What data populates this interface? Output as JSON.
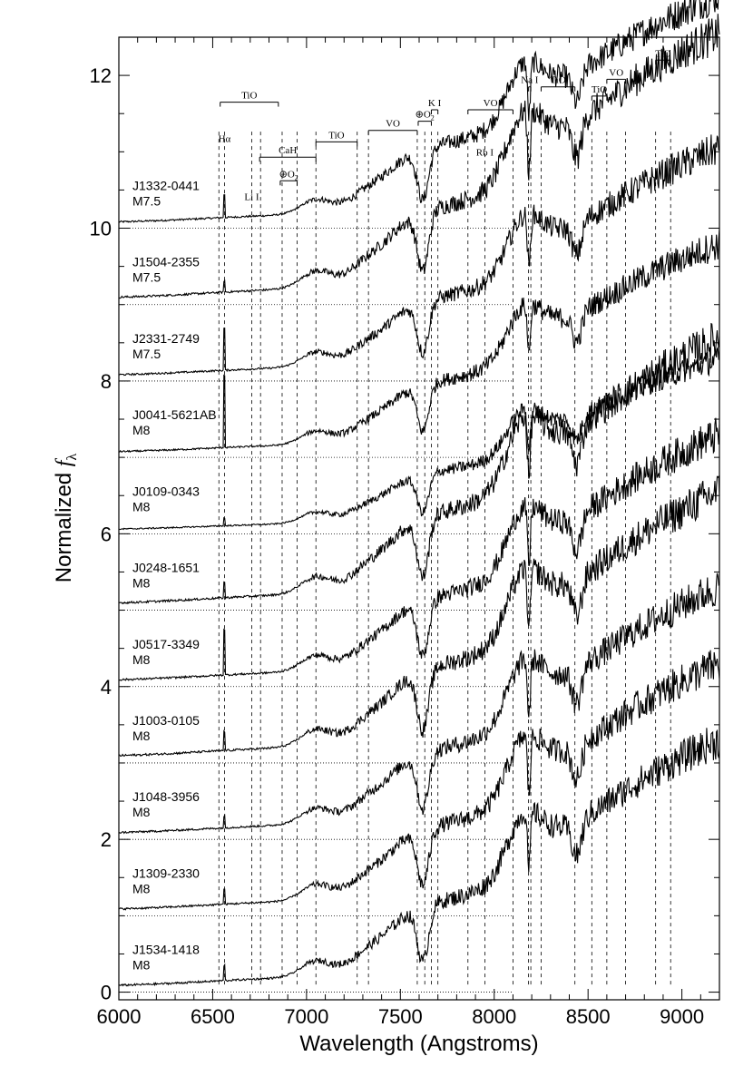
{
  "chart_data": {
    "type": "line",
    "xlabel": "Wavelength (Angstroms)",
    "ylabel": "Normalized f_λ",
    "ylabel_main": "Normalized ",
    "ylabel_f": "f",
    "ylabel_sub": "λ",
    "xlim": [
      6000,
      9200
    ],
    "ylim": [
      -0.1,
      12.5
    ],
    "x_ticks": [
      "6000",
      "6500",
      "7000",
      "7500",
      "8000",
      "8500",
      "9000"
    ],
    "y_ticks": [
      "0",
      "2",
      "4",
      "6",
      "8",
      "10",
      "12"
    ],
    "series": [
      {
        "name": "J1332-0441",
        "spt": "M7.5",
        "offset": 10,
        "peak": 1.2,
        "ha": 0.3
      },
      {
        "name": "J1504-2355",
        "spt": "M7.5",
        "offset": 9,
        "peak": 1.4,
        "ha": 0.15
      },
      {
        "name": "J2331-2749",
        "spt": "M7.5",
        "offset": 8,
        "peak": 1.2,
        "ha": 0.55
      },
      {
        "name": "J0041-5621AB",
        "spt": "M8",
        "offset": 7,
        "peak": 1.1,
        "ha": 0.95
      },
      {
        "name": "J0109-0343",
        "spt": "M8",
        "offset": 6,
        "peak": 0.9,
        "ha": 0.1
      },
      {
        "name": "J0248-1651",
        "spt": "M8",
        "offset": 5,
        "peak": 1.4,
        "ha": 0.2
      },
      {
        "name": "J0517-3349",
        "spt": "M8",
        "offset": 4,
        "peak": 1.3,
        "ha": 0.6
      },
      {
        "name": "J1003-0105",
        "spt": "M8",
        "offset": 3,
        "peak": 1.4,
        "ha": 0.25
      },
      {
        "name": "J1048-3956",
        "spt": "M8",
        "offset": 2,
        "peak": 1.3,
        "ha": 0.15
      },
      {
        "name": "J1309-2330",
        "spt": "M8",
        "offset": 1,
        "peak": 1.3,
        "ha": 0.2
      },
      {
        "name": "J1534-1418",
        "spt": "M8",
        "offset": 0,
        "peak": 1.3,
        "ha": 0.2
      }
    ],
    "feature_lines": [
      6533,
      6563,
      6708,
      6755,
      6870,
      6950,
      7050,
      7270,
      7330,
      7590,
      7630,
      7665,
      7700,
      7860,
      7950,
      8100,
      8183,
      8195,
      8250,
      8430,
      8520,
      8600,
      8700,
      8860,
      8940
    ],
    "features": [
      {
        "id": "tio1",
        "text": "TiO",
        "bar": [
          6540,
          6850
        ],
        "y": 11.65
      },
      {
        "id": "halpha",
        "text": "Hα",
        "x": 6563,
        "y": 11.13
      },
      {
        "id": "cah",
        "text": "CaH",
        "bar": [
          6750,
          7050
        ],
        "y": 10.93
      },
      {
        "id": "li",
        "text": "Li I",
        "x": 6708,
        "y": 10.37
      },
      {
        "id": "o2a",
        "text": "⊕O",
        "sub": "2",
        "bar": [
          6860,
          6950
        ],
        "y": 10.62
      },
      {
        "id": "tio2",
        "text": "TiO",
        "bar": [
          7050,
          7270
        ],
        "y": 11.13
      },
      {
        "id": "vo1",
        "text": "VO",
        "bar": [
          7330,
          7590
        ],
        "y": 11.28
      },
      {
        "id": "o2b",
        "text": "⊕O",
        "sub": "2",
        "bar": [
          7595,
          7665
        ],
        "y": 11.4
      },
      {
        "id": "ki",
        "text": "K I",
        "bar": [
          7665,
          7700
        ],
        "y": 11.55
      },
      {
        "id": "vo2",
        "text": "VO",
        "bar": [
          7860,
          8100
        ],
        "y": 11.55
      },
      {
        "id": "rbi",
        "text": "Rb I",
        "x": 7950,
        "y": 10.95
      },
      {
        "id": "nai",
        "text": "Na I",
        "bar": [
          8183,
          8195
        ],
        "y": 11.85
      },
      {
        "id": "tio3",
        "text": "TiO",
        "bar": [
          8250,
          8430
        ],
        "y": 11.85
      },
      {
        "id": "tio4",
        "text": "TiO",
        "bar": [
          8520,
          8600
        ],
        "y": 11.73
      },
      {
        "id": "vo3",
        "text": "VO",
        "bar": [
          8600,
          8700
        ],
        "y": 11.95
      },
      {
        "id": "tio5",
        "text": "TiO",
        "bar": [
          8860,
          8940
        ],
        "y": 12.2
      }
    ],
    "grid": false,
    "legend": "labels-at-left"
  }
}
